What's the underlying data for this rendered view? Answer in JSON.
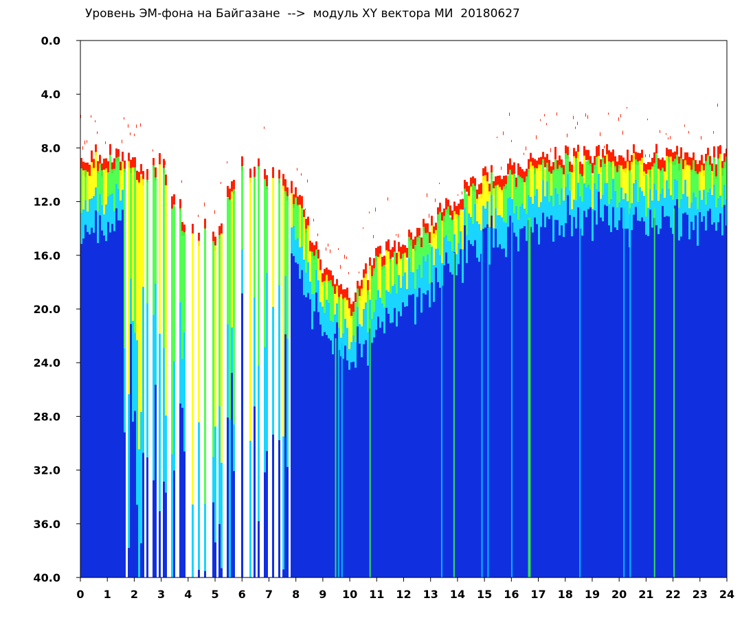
{
  "chart_data": {
    "type": "heatmap",
    "title": "Уровень ЭМ-фона на Байгазане  -->  модуль XY вектора МИ  20180627",
    "xlabel": "",
    "ylabel": "",
    "xlim": [
      0,
      24
    ],
    "ylim": [
      0.0,
      40.0
    ],
    "y_inverted": true,
    "grid": false,
    "legend": "none",
    "x_ticks": [
      "0",
      "1",
      "2",
      "3",
      "4",
      "5",
      "6",
      "7",
      "8",
      "9",
      "10",
      "11",
      "12",
      "13",
      "14",
      "15",
      "16",
      "17",
      "18",
      "19",
      "20",
      "21",
      "22",
      "23",
      "24"
    ],
    "y_ticks": [
      "0.0",
      "4.0",
      "8.0",
      "12.0",
      "16.0",
      "20.0",
      "24.0",
      "28.0",
      "32.0",
      "36.0",
      "40.0"
    ],
    "colors": {
      "low": "#1030e0",
      "mid_low": "#00d0ff",
      "mid": "#40ff40",
      "mid_high": "#ffff00",
      "high": "#ff2000",
      "background": "#ffffff"
    },
    "top_boundary": {
      "hours": [
        0,
        1,
        1.5,
        2,
        3,
        4,
        5,
        6,
        7,
        8,
        9,
        10,
        11,
        12,
        13,
        14,
        15,
        16,
        17,
        18,
        19,
        20,
        21,
        22,
        23,
        24
      ],
      "level": [
        8.5,
        8.5,
        8.5,
        9.0,
        9.0,
        14.0,
        14.0,
        8.5,
        9.5,
        11.0,
        17.5,
        19.0,
        16.0,
        15.0,
        13.5,
        11.5,
        10.0,
        9.5,
        9.0,
        8.5,
        8.5,
        8.5,
        8.5,
        8.5,
        8.5,
        8.5
      ]
    }
  }
}
